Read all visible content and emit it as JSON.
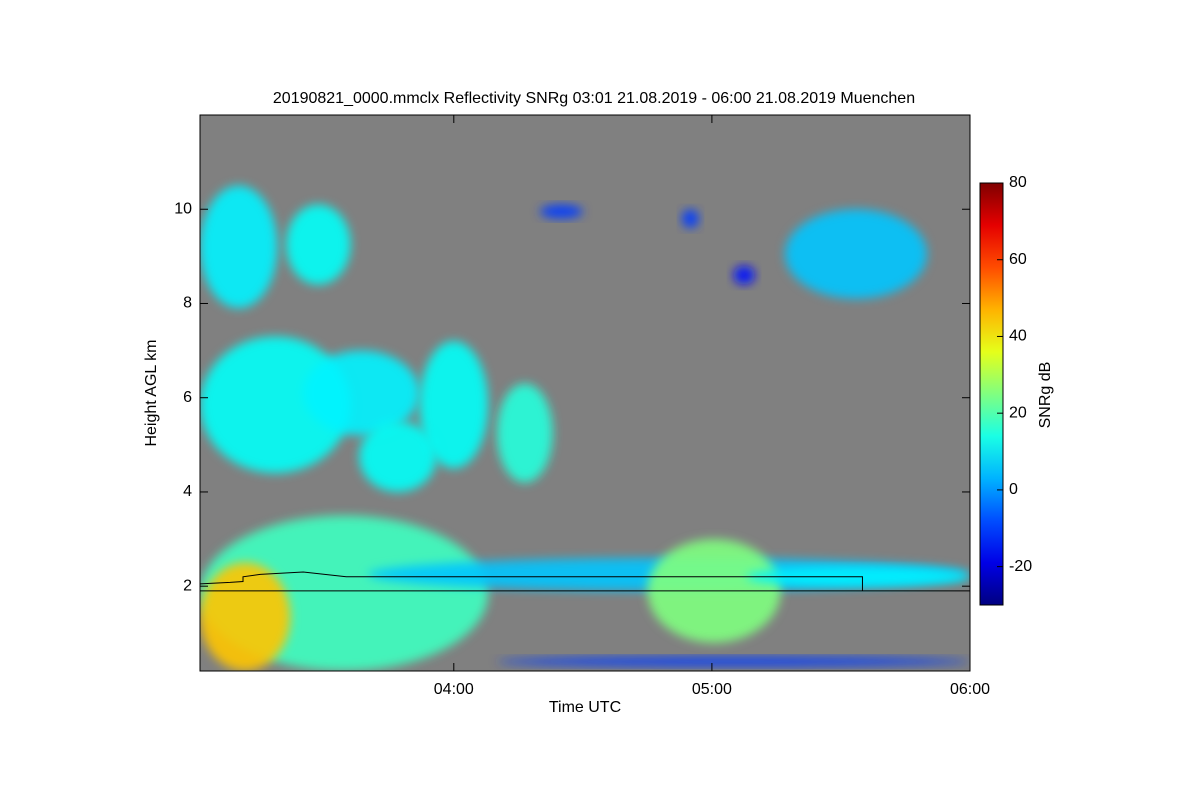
{
  "chart_data": {
    "type": "time-height",
    "title": "20190821_0000.mmclx Reflectivity SNRg   03:01 21.08.2019 - 06:00 21.08.2019 Muenchen",
    "x_label": "Time UTC",
    "y_label": "Height AGL km",
    "colorbar_label": "SNRg dB",
    "background": "#808080",
    "colormap": "jet",
    "xlim": [
      "03:01",
      "06:00"
    ],
    "xticks": [
      "04:00",
      "05:00",
      "06:00"
    ],
    "ylim": [
      0.2,
      12
    ],
    "yticks": [
      2,
      4,
      6,
      8,
      10
    ],
    "clim": [
      -30,
      80
    ],
    "cticks": [
      -20,
      0,
      20,
      40,
      60,
      80
    ],
    "echoes": {
      "t0": [
        "03:01",
        "03:21",
        "03:01",
        "03:25",
        "03:38",
        "03:52",
        "04:10",
        "03:01",
        "03:01",
        "03:40",
        "04:45",
        "05:08",
        "05:17",
        "04:20",
        "04:53",
        "05:05",
        "04:10"
      ],
      "t1": [
        "03:19",
        "03:36",
        "03:36",
        "03:52",
        "03:56",
        "04:08",
        "04:23",
        "04:08",
        "03:22",
        "06:00",
        "05:16",
        "06:00",
        "05:50",
        "04:30",
        "04:57",
        "05:10",
        "06:00"
      ],
      "h0": [
        7.9,
        8.4,
        4.4,
        5.2,
        4.0,
        4.5,
        4.2,
        0.2,
        0.2,
        1.9,
        0.8,
        2.0,
        8.1,
        9.8,
        9.6,
        8.4,
        0.3
      ],
      "h1": [
        10.5,
        10.1,
        7.3,
        7.0,
        5.5,
        7.2,
        6.3,
        3.5,
        2.5,
        2.6,
        3.0,
        2.4,
        10.0,
        10.1,
        10.0,
        8.8,
        0.5
      ],
      "snr": [
        10,
        12,
        12,
        10,
        12,
        12,
        15,
        18,
        45,
        5,
        25,
        10,
        5,
        -10,
        -10,
        -15,
        -10
      ]
    },
    "lines": [
      {
        "color": "#000000",
        "x": [
          "03:01",
          "03:08",
          "03:11",
          "03:11",
          "03:15",
          "03:25",
          "03:35",
          "05:35",
          "05:35"
        ],
        "values": [
          2.05,
          2.08,
          2.1,
          2.2,
          2.25,
          2.3,
          2.2,
          2.2,
          1.9
        ]
      },
      {
        "color": "#000000",
        "x": [
          "03:01",
          "06:00"
        ],
        "values": [
          1.9,
          1.9
        ]
      }
    ]
  }
}
